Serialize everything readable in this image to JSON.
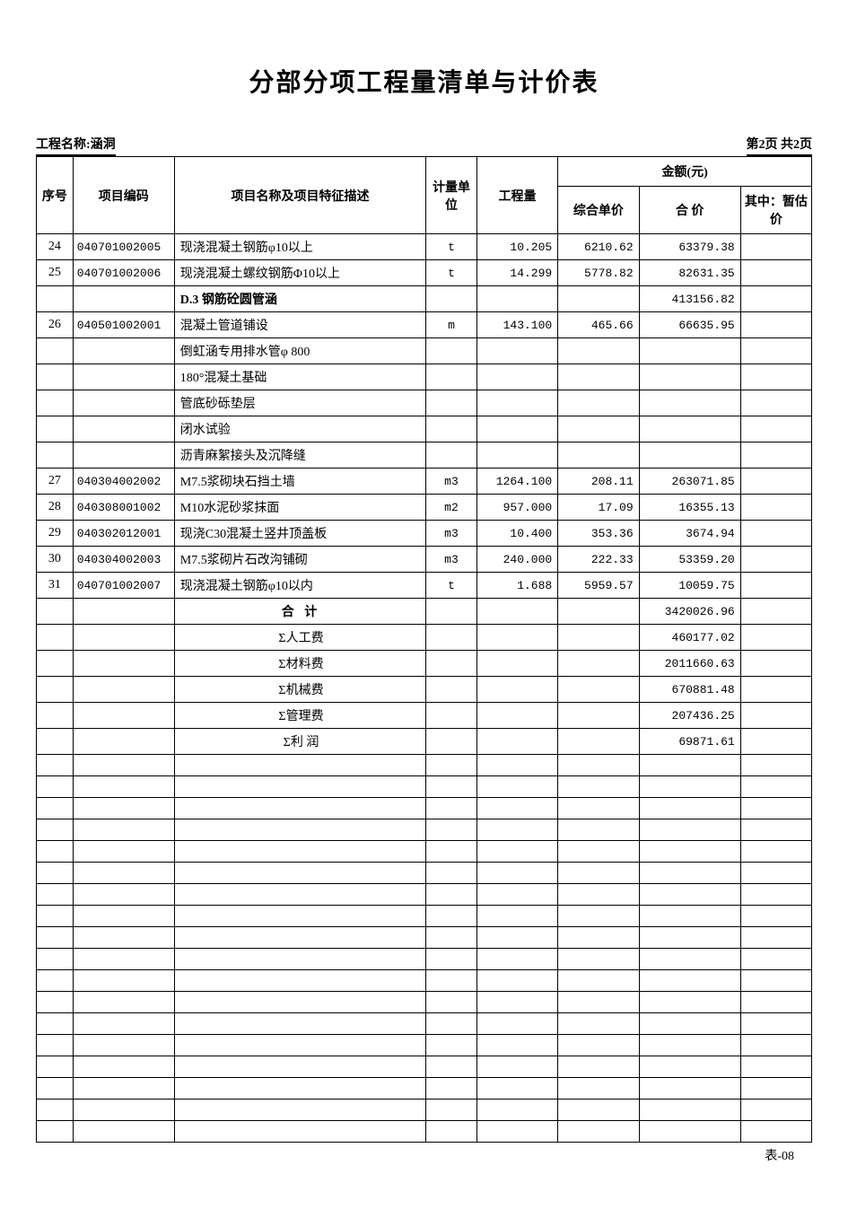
{
  "title": "分部分项工程量清单与计价表",
  "project_label": "工程名称:涵洞",
  "page_label": "第2页 共2页",
  "footer": "表-08",
  "columns": {
    "seq": "序号",
    "code": "项目编码",
    "name": "项目名称及项目特征描述",
    "unit": "计量单位",
    "qty": "工程量",
    "amount_group": "金额(元)",
    "unit_price": "综合单价",
    "total_price": "合 价",
    "est_price": "其中：暂估价"
  },
  "rows": [
    {
      "seq": "24",
      "code": "040701002005",
      "name": "现浇混凝土钢筋φ10以上",
      "unit": "t",
      "qty": "10.205",
      "up": "6210.62",
      "tp": "63379.38",
      "ep": ""
    },
    {
      "seq": "25",
      "code": "040701002006",
      "name": "现浇混凝土螺纹钢筋Φ10以上",
      "unit": "t",
      "qty": "14.299",
      "up": "5778.82",
      "tp": "82631.35",
      "ep": ""
    },
    {
      "seq": "",
      "code": "",
      "name": "D.3 钢筋砼圆管涵",
      "unit": "",
      "qty": "",
      "up": "",
      "tp": "413156.82",
      "ep": "",
      "bold": true
    },
    {
      "seq": "26",
      "code": "040501002001",
      "name": "混凝土管道铺设",
      "unit": "m",
      "qty": "143.100",
      "up": "465.66",
      "tp": "66635.95",
      "ep": ""
    },
    {
      "seq": "",
      "code": "",
      "name": "倒虹涵专用排水管φ 800",
      "unit": "",
      "qty": "",
      "up": "",
      "tp": "",
      "ep": ""
    },
    {
      "seq": "",
      "code": "",
      "name": "180°混凝土基础",
      "unit": "",
      "qty": "",
      "up": "",
      "tp": "",
      "ep": ""
    },
    {
      "seq": "",
      "code": "",
      "name": "管底砂砾垫层",
      "unit": "",
      "qty": "",
      "up": "",
      "tp": "",
      "ep": ""
    },
    {
      "seq": "",
      "code": "",
      "name": "闭水试验",
      "unit": "",
      "qty": "",
      "up": "",
      "tp": "",
      "ep": ""
    },
    {
      "seq": "",
      "code": "",
      "name": "沥青麻絮接头及沉降缝",
      "unit": "",
      "qty": "",
      "up": "",
      "tp": "",
      "ep": ""
    },
    {
      "seq": "27",
      "code": "040304002002",
      "name": "M7.5浆砌块石挡土墙",
      "unit": "m3",
      "qty": "1264.100",
      "up": "208.11",
      "tp": "263071.85",
      "ep": ""
    },
    {
      "seq": "28",
      "code": "040308001002",
      "name": "M10水泥砂浆抹面",
      "unit": "m2",
      "qty": "957.000",
      "up": "17.09",
      "tp": "16355.13",
      "ep": ""
    },
    {
      "seq": "29",
      "code": "040302012001",
      "name": "现浇C30混凝土竖井顶盖板",
      "unit": "m3",
      "qty": "10.400",
      "up": "353.36",
      "tp": "3674.94",
      "ep": ""
    },
    {
      "seq": "30",
      "code": "040304002003",
      "name": "M7.5浆砌片石改沟铺砌",
      "unit": "m3",
      "qty": "240.000",
      "up": "222.33",
      "tp": "53359.20",
      "ep": ""
    },
    {
      "seq": "31",
      "code": "040701002007",
      "name": "现浇混凝土钢筋φ10以内",
      "unit": "t",
      "qty": "1.688",
      "up": "5959.57",
      "tp": "10059.75",
      "ep": ""
    },
    {
      "seq": "",
      "code": "",
      "name": "合  计",
      "unit": "",
      "qty": "",
      "up": "",
      "tp": "3420026.96",
      "ep": "",
      "center": true,
      "bold": true,
      "spaced": true
    },
    {
      "seq": "",
      "code": "",
      "name": "Σ人工费",
      "unit": "",
      "qty": "",
      "up": "",
      "tp": "460177.02",
      "ep": "",
      "center": true
    },
    {
      "seq": "",
      "code": "",
      "name": "Σ材料费",
      "unit": "",
      "qty": "",
      "up": "",
      "tp": "2011660.63",
      "ep": "",
      "center": true
    },
    {
      "seq": "",
      "code": "",
      "name": "Σ机械费",
      "unit": "",
      "qty": "",
      "up": "",
      "tp": "670881.48",
      "ep": "",
      "center": true
    },
    {
      "seq": "",
      "code": "",
      "name": "Σ管理费",
      "unit": "",
      "qty": "",
      "up": "",
      "tp": "207436.25",
      "ep": "",
      "center": true
    },
    {
      "seq": "",
      "code": "",
      "name": "Σ利  润",
      "unit": "",
      "qty": "",
      "up": "",
      "tp": "69871.61",
      "ep": "",
      "center": true
    }
  ],
  "blank_rows": 18
}
